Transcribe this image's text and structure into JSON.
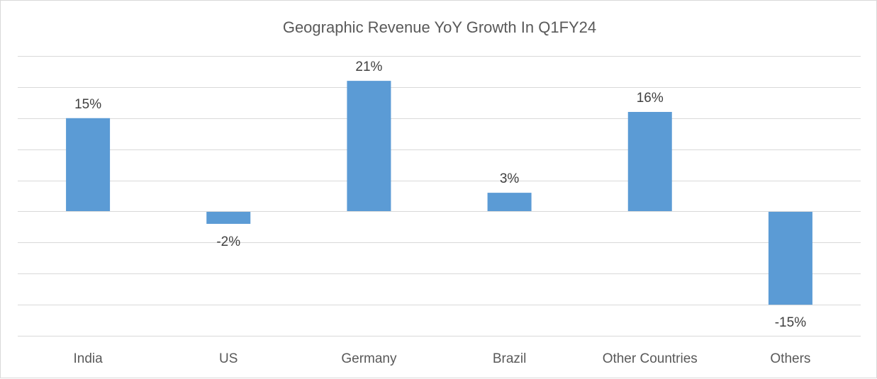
{
  "chart_data": {
    "type": "bar",
    "title": "Geographic Revenue YoY Growth In Q1FY24",
    "categories": [
      "India",
      "US",
      "Germany",
      "Brazil",
      "Other Countries",
      "Others"
    ],
    "values": [
      15,
      -2,
      21,
      3,
      16,
      -15
    ],
    "data_labels": [
      "15%",
      "-2%",
      "21%",
      "3%",
      "16%",
      "-15%"
    ],
    "ylim": [
      -20,
      25
    ],
    "y_grid_step": 5,
    "grid": true,
    "legend": "none",
    "xlabel": "",
    "ylabel": "",
    "bar_color": "#5b9bd5"
  }
}
